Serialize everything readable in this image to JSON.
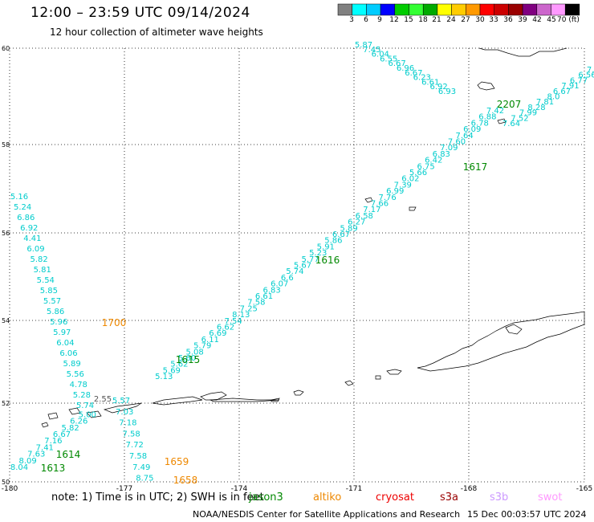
{
  "header": {
    "title": "12:00 – 23:59 UTC 09/14/2024",
    "subtitle": "12 hour collection of altimeter wave heights"
  },
  "colorbar": {
    "colors": [
      "#808080",
      "#00ffff",
      "#00ccff",
      "#0000ff",
      "#00cc00",
      "#33ff33",
      "#00aa00",
      "#ffff00",
      "#ffcc00",
      "#ff9900",
      "#ff0000",
      "#cc0000",
      "#990000",
      "#800080",
      "#cc66cc",
      "#ff99ff",
      "#000000"
    ],
    "labels": [
      "3",
      "6",
      "9",
      "12",
      "15",
      "18",
      "21",
      "24",
      "27",
      "30",
      "33",
      "36",
      "39",
      "42",
      "45",
      "70 (ft)"
    ]
  },
  "axes": {
    "lat_labels": [
      "60",
      "58",
      "56",
      "54",
      "52",
      "50"
    ],
    "lon_labels": [
      "-180",
      "-177",
      "-174",
      "-171",
      "-168",
      "-165"
    ]
  },
  "tracks": [
    {
      "color": "#00cccc",
      "values": [
        "5.87",
        "7.45",
        "6.04",
        "6.55",
        "6.67",
        "6.96",
        "6.67",
        "6.23",
        "6.61",
        "6.92",
        "6.93"
      ]
    },
    {
      "color": "#00cccc",
      "values": [
        "7.42",
        "6.88",
        "6.78",
        "6.09",
        "7.64",
        "7.60",
        "7.09",
        "6.83",
        "6.42",
        "6.75",
        "5.66",
        "6.02",
        "7.39",
        "6.99",
        "7.76",
        "7.66",
        "7.17",
        "6.58",
        "6.27",
        "5.89",
        "6.67",
        "5.86",
        "5.91",
        "5.23",
        "5.77",
        "5.67",
        "5.74",
        "6.6",
        "6.07",
        "6.83",
        "6.61",
        "7.58",
        "7.25",
        "8.13",
        "7.54",
        "6.62",
        "6.69",
        "6.11",
        "5.79",
        "5.08",
        "5.60",
        "5.62",
        "5.69",
        "5.13"
      ]
    },
    {
      "color": "#00cccc",
      "values": [
        "8.04",
        "8.09",
        "7.63",
        "7.41",
        "7.16",
        "6.67",
        "5.82",
        "6.26",
        "5.00"
      ]
    },
    {
      "color": "#00cccc",
      "values": [
        "5.16",
        "5.24",
        "6.86",
        "6.92",
        "4.41",
        "6.09",
        "5.82",
        "5.81",
        "5.54",
        "5.85",
        "5.57",
        "5.86",
        "5.96",
        "5.97",
        "6.04",
        "6.06",
        "5.89",
        "5.56",
        "4.78",
        "5.28",
        "5.74"
      ]
    },
    {
      "color": "#00cccc",
      "values": [
        "5.57",
        "7.03",
        "7.18",
        "7.58",
        "7.72",
        "7.58",
        "7.49",
        "8.75"
      ]
    },
    {
      "color": "#00cccc",
      "values": [
        "7.64",
        "7.52",
        "7.99",
        "8.28",
        "7.81",
        "8.0",
        "6.67",
        "7.91",
        "6.77",
        "6.56",
        "7.40"
      ]
    },
    {
      "color": "#555555",
      "values": [
        "2.55"
      ]
    }
  ],
  "time_labels": [
    {
      "text": "2207",
      "color": "#008800"
    },
    {
      "text": "1617",
      "color": "#008800"
    },
    {
      "text": "1616",
      "color": "#008800"
    },
    {
      "text": "1700",
      "color": "#ee8800"
    },
    {
      "text": "1615",
      "color": "#008800"
    },
    {
      "text": "1614",
      "color": "#008800"
    },
    {
      "text": "1613",
      "color": "#008800"
    },
    {
      "text": "1659",
      "color": "#ee8800"
    },
    {
      "text": "1658",
      "color": "#ee8800"
    }
  ],
  "footer": {
    "note": "note:  1) Time is in UTC; 2) SWH is in feet",
    "missions": [
      {
        "name": "jason3",
        "color": "#008800"
      },
      {
        "name": "altiko",
        "color": "#ee8800"
      },
      {
        "name": "cryosat",
        "color": "#ee0000"
      },
      {
        "name": "s3a",
        "color": "#990000"
      },
      {
        "name": "s3b",
        "color": "#cc99ff"
      },
      {
        "name": "swot",
        "color": "#ff99ff"
      }
    ],
    "credit": "NOAA/NESDIS Center for Satellite Applications and Research",
    "generated": "15 Dec 00:03:57 UTC 2024"
  }
}
